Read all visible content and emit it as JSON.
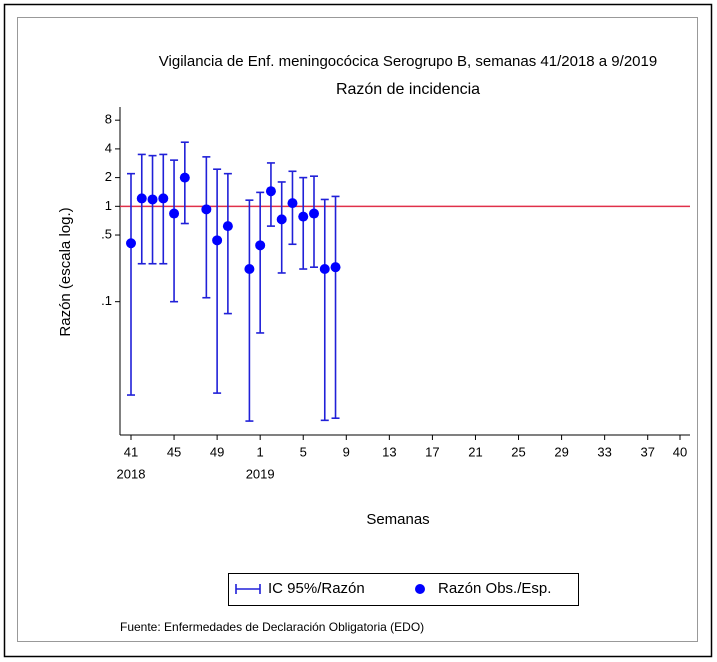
{
  "chart_data": {
    "type": "errorbar",
    "title": "Vigilancia de Enf. meningocócica Serogrupo B, semanas 41/2018 a 9/2019",
    "subtitle": "Razón de incidencia",
    "x_label": "Semanas",
    "y_label": "Razón (escala log.)",
    "source": "Fuente: Enfermedades de Declaración Obligatoria (EDO)",
    "year_labels": [
      "2018",
      "2019"
    ],
    "categories": [
      "41",
      null,
      null,
      null,
      "45",
      null,
      null,
      null,
      "49",
      null,
      null,
      null,
      "1",
      null,
      null,
      null,
      "5",
      null,
      null,
      null,
      "9",
      null,
      null,
      null,
      "13",
      null,
      null,
      null,
      "17",
      null,
      null,
      null,
      "21",
      null,
      null,
      null,
      "25",
      null,
      null,
      null,
      "29",
      null,
      null,
      null,
      "33",
      null,
      null,
      null,
      "37",
      null,
      null,
      "40"
    ],
    "series": [
      {
        "name": "IC 95%/Razón",
        "color": "#2020d8",
        "lower": [
          0.0105,
          0.25,
          0.25,
          0.25,
          0.1,
          0.66,
          null,
          0.11,
          0.011,
          0.075,
          null,
          0.0056,
          0.047,
          0.62,
          0.2,
          0.4,
          0.22,
          0.23,
          0.0057,
          0.006,
          null,
          null,
          null,
          null,
          null,
          null,
          null,
          null,
          null,
          null,
          null,
          null,
          null,
          null,
          null,
          null,
          null,
          null,
          null,
          null,
          null,
          null,
          null,
          null,
          null,
          null,
          null,
          null,
          null,
          null,
          null,
          null
        ],
        "upper": [
          2.2,
          3.5,
          3.4,
          3.5,
          3.05,
          4.7,
          null,
          3.3,
          2.45,
          2.2,
          null,
          1.16,
          1.4,
          2.85,
          1.8,
          2.33,
          2.0,
          2.07,
          1.18,
          1.27,
          null,
          null,
          null,
          null,
          null,
          null,
          null,
          null,
          null,
          null,
          null,
          null,
          null,
          null,
          null,
          null,
          null,
          null,
          null,
          null,
          null,
          null,
          null,
          null,
          null,
          null,
          null,
          null,
          null,
          null,
          null,
          null
        ]
      },
      {
        "name": "Razón Obs./Esp.",
        "color": "#0000ff",
        "values": [
          0.41,
          1.21,
          1.18,
          1.21,
          0.84,
          2.0,
          null,
          0.93,
          0.44,
          0.62,
          null,
          0.22,
          0.39,
          1.44,
          0.73,
          1.08,
          0.78,
          0.84,
          0.22,
          0.23,
          null,
          null,
          null,
          null,
          null,
          null,
          null,
          null,
          null,
          null,
          null,
          null,
          null,
          null,
          null,
          null,
          null,
          null,
          null,
          null,
          null,
          null,
          null,
          null,
          null,
          null,
          null,
          null,
          null,
          null,
          null,
          null
        ]
      }
    ],
    "log_scale": true,
    "ylim": [
      0.004,
      11
    ],
    "yticks": [
      8,
      4,
      2,
      1,
      {
        "value": 0.5,
        "label": ".5"
      },
      {
        "value": 0.1,
        "label": ".1"
      }
    ],
    "reference_line": 1,
    "reference_color": "#e0304a"
  }
}
